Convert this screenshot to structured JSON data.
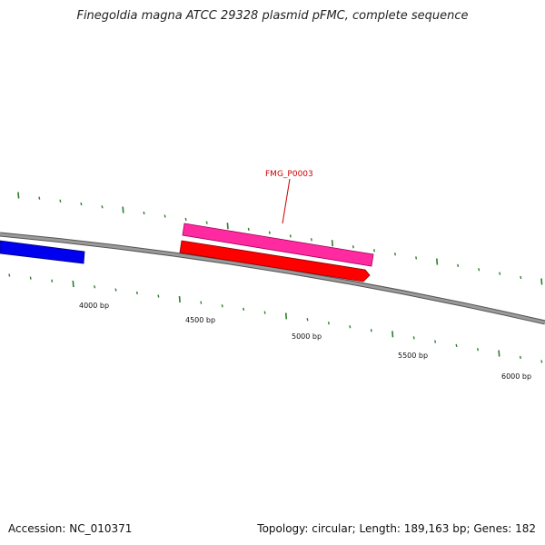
{
  "title": "Finegoldia magna ATCC 29328 plasmid pFMC, complete sequence",
  "footer": {
    "accession": "Accession: NC_010371",
    "summary": "Topology: circular; Length: 189,163 bp; Genes: 182"
  },
  "colors": {
    "backbone": "#8a8a8a",
    "tick": "#2e7d2e",
    "gene_blue": "#0000ee",
    "gene_magenta": "#ff2aa0",
    "gene_red": "#ff0000",
    "gene_label": "#cc0000"
  },
  "scale_labels": [
    "4000 bp",
    "4500 bp",
    "5000 bp",
    "5500 bp",
    "6000 bp"
  ],
  "gene_callout": "FMG_P0003"
}
